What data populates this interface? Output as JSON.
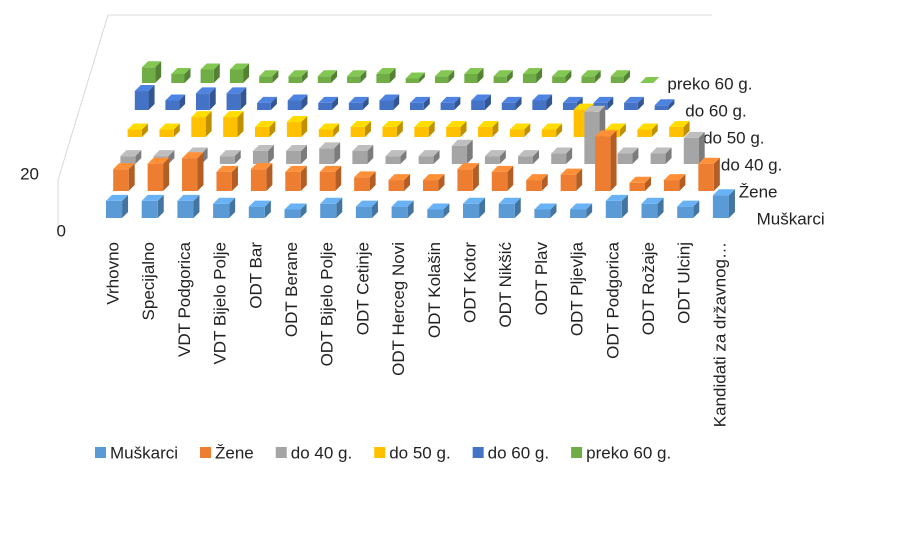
{
  "chart_data": {
    "type": "bar3d",
    "categories": [
      "Vrhovno",
      "Specijalno",
      "VDT Podgorica",
      "VDT Bijelo Polje",
      "ODT Bar",
      "ODT Berane",
      "ODT Bijelo Polje",
      "ODT Cetinje",
      "ODT Herceg Novi",
      "ODT Kolašin",
      "ODT Kotor",
      "ODT Nikšić",
      "ODT Plav",
      "ODT Pljevlja",
      "ODT Podgorica",
      "ODT Rožaje",
      "ODT Ulcinj",
      "Kandidati za državnog…"
    ],
    "series": [
      {
        "name": "Muškarci",
        "color": "#5b9bd5",
        "values": [
          6,
          6,
          6,
          5,
          4,
          3,
          5,
          4,
          4,
          3,
          5,
          5,
          3,
          3,
          6,
          5,
          4,
          8
        ]
      },
      {
        "name": "Žene",
        "color": "#ed7d31",
        "values": [
          8,
          10,
          12,
          7,
          8,
          7,
          7,
          5,
          4,
          4,
          8,
          7,
          4,
          6,
          20,
          3,
          4,
          10
        ]
      },
      {
        "name": "do 40 g.",
        "color": "#a5a5a5",
        "values": [
          3,
          3,
          4,
          3,
          5,
          5,
          6,
          5,
          3,
          3,
          7,
          3,
          3,
          4,
          20,
          4,
          4,
          10
        ]
      },
      {
        "name": "do 50 g.",
        "color": "#ffc000",
        "values": [
          3,
          3,
          8,
          8,
          4,
          6,
          3,
          4,
          4,
          4,
          4,
          4,
          3,
          3,
          11,
          3,
          3,
          4
        ]
      },
      {
        "name": "do 60 g.",
        "color": "#4472c4",
        "values": [
          8,
          4,
          7,
          7,
          3,
          4,
          3,
          3,
          4,
          3,
          3,
          4,
          3,
          4,
          3,
          3,
          3,
          2
        ]
      },
      {
        "name": "preko 60 g.",
        "color": "#70ad47",
        "values": [
          7,
          4,
          6,
          6,
          3,
          3,
          3,
          3,
          4,
          2,
          3,
          4,
          3,
          4,
          3,
          3,
          3,
          0
        ]
      }
    ],
    "ylim": [
      0,
      40
    ],
    "yticks": [
      0,
      20
    ]
  }
}
